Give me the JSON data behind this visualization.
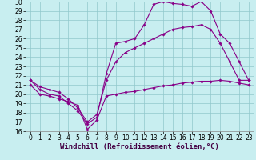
{
  "xlabel": "Windchill (Refroidissement éolien,°C)",
  "bg_color": "#c8eef0",
  "grid_color": "#90c8cc",
  "line_color": "#880088",
  "xlim": [
    -0.5,
    23.5
  ],
  "ylim": [
    16,
    30
  ],
  "xticks": [
    0,
    1,
    2,
    3,
    4,
    5,
    6,
    7,
    8,
    9,
    10,
    11,
    12,
    13,
    14,
    15,
    16,
    17,
    18,
    19,
    20,
    21,
    22,
    23
  ],
  "yticks": [
    16,
    17,
    18,
    19,
    20,
    21,
    22,
    23,
    24,
    25,
    26,
    27,
    28,
    29,
    30
  ],
  "series": [
    {
      "x": [
        0,
        1,
        2,
        3,
        4,
        5,
        6,
        7,
        8,
        9,
        10,
        11,
        12,
        13,
        14,
        15,
        16,
        17,
        18,
        19,
        20,
        21,
        22,
        23
      ],
      "y": [
        21,
        20,
        19.8,
        19.5,
        19.2,
        18.8,
        16.2,
        17.2,
        19.8,
        20.0,
        20.2,
        20.3,
        20.5,
        20.7,
        20.9,
        21.0,
        21.2,
        21.3,
        21.4,
        21.4,
        21.5,
        21.4,
        21.2,
        21.0
      ]
    },
    {
      "x": [
        0,
        1,
        2,
        3,
        4,
        5,
        6,
        7,
        8,
        9,
        10,
        11,
        12,
        13,
        14,
        15,
        16,
        17,
        18,
        19,
        20,
        21,
        22,
        23
      ],
      "y": [
        21.5,
        20.5,
        20.0,
        19.8,
        19.0,
        18.2,
        16.8,
        17.5,
        22.2,
        25.5,
        25.7,
        26.0,
        27.5,
        29.7,
        30.0,
        29.8,
        29.7,
        29.5,
        30.0,
        29.0,
        26.5,
        25.5,
        23.5,
        21.5
      ]
    },
    {
      "x": [
        0,
        1,
        2,
        3,
        4,
        5,
        6,
        7,
        8,
        9,
        10,
        11,
        12,
        13,
        14,
        15,
        16,
        17,
        18,
        19,
        20,
        21,
        22,
        23
      ],
      "y": [
        21.5,
        20.8,
        20.5,
        20.2,
        19.5,
        18.5,
        17.0,
        17.8,
        21.5,
        23.5,
        24.5,
        25.0,
        25.5,
        26.0,
        26.5,
        27.0,
        27.2,
        27.3,
        27.5,
        27.0,
        25.5,
        23.5,
        21.5,
        21.5
      ]
    }
  ],
  "xlabel_fontsize": 6.5,
  "tick_fontsize": 5.5,
  "marker": "D",
  "markersize": 1.8,
  "linewidth": 0.8
}
